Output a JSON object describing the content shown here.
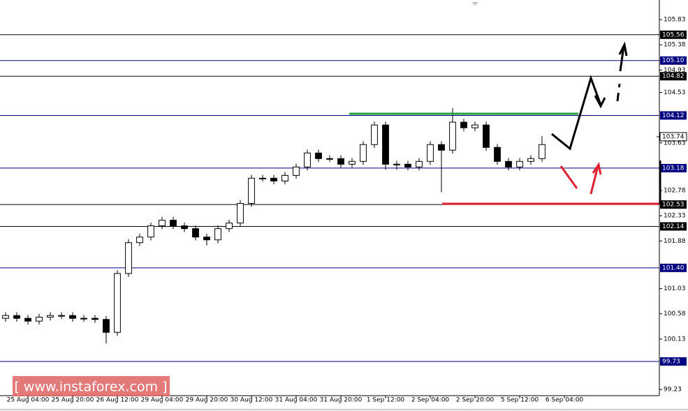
{
  "chart_data": {
    "type": "candlestick",
    "watermark": "[ www.instaforex.com ]",
    "xlim": [
      -0.5,
      58.5
    ],
    "xticks": [
      {
        "value": 2,
        "label": "25 Aug 04:00"
      },
      {
        "value": 6,
        "label": "25 Aug 20:00"
      },
      {
        "value": 10,
        "label": "26 Aug 12:00"
      },
      {
        "value": 14,
        "label": "29 Aug 04:00"
      },
      {
        "value": 18,
        "label": "29 Aug 20:00"
      },
      {
        "value": 22,
        "label": "30 Aug 12:00"
      },
      {
        "value": 26,
        "label": "31 Aug 04:00"
      },
      {
        "value": 30,
        "label": "31 Aug 20:00"
      },
      {
        "value": 34,
        "label": "1 Sep 12:00"
      },
      {
        "value": 38,
        "label": "2 Sep 04:00"
      },
      {
        "value": 42,
        "label": "2 Sep 20:00"
      },
      {
        "value": 46,
        "label": "5 Sep 12:00"
      },
      {
        "value": 50,
        "label": "6 Sep 04:00"
      }
    ],
    "ylim": [
      99.12,
      106.18
    ],
    "yticks": [
      99.23,
      100.13,
      100.58,
      101.03,
      101.88,
      102.33,
      102.78,
      103.63,
      104.53,
      104.93,
      105.38,
      105.83
    ],
    "levels": [
      {
        "value": 105.56,
        "color": "#000000"
      },
      {
        "value": {
          "value": 105.1,
          "label": "105.10"
        },
        "color": "#000080"
      },
      {
        "value": 104.82,
        "color": "#000000"
      },
      {
        "value": 104.12,
        "color": "#000080"
      },
      {
        "value": 103.18,
        "color": "#000080"
      },
      {
        "value": 102.53,
        "color": "#000000"
      },
      {
        "value": 102.14,
        "color": "#000000"
      },
      {
        "value": {
          "value": 101.4,
          "label": "101.40"
        },
        "color": "#000080"
      },
      {
        "value": 99.73,
        "color": "#000080"
      }
    ],
    "current_price": 103.74,
    "open": [
      100.5,
      100.55,
      100.5,
      100.45,
      100.52,
      100.55,
      100.55,
      100.5,
      100.5,
      100.48,
      100.25,
      101.3,
      101.85,
      101.95,
      102.15,
      102.25,
      102.15,
      102.1,
      101.95,
      101.9,
      102.1,
      102.2,
      102.55,
      103.0,
      103.0,
      102.95,
      103.05,
      103.2,
      103.45,
      103.35,
      103.35,
      103.25,
      103.3,
      103.6,
      103.95,
      103.25,
      103.25,
      103.2,
      103.3,
      103.6,
      103.5,
      104.0,
      103.9,
      103.95,
      103.55,
      103.3,
      103.2,
      103.3,
      103.35
    ],
    "high": [
      100.61,
      100.61,
      100.56,
      100.58,
      100.61,
      100.61,
      100.61,
      100.56,
      100.56,
      100.54,
      101.36,
      101.91,
      102.01,
      102.21,
      102.31,
      102.31,
      102.21,
      102.16,
      102.01,
      102.16,
      102.26,
      102.61,
      103.06,
      103.06,
      103.06,
      103.11,
      103.26,
      103.51,
      103.51,
      103.41,
      103.41,
      103.36,
      103.66,
      104.01,
      104.01,
      103.31,
      103.31,
      103.36,
      103.66,
      103.66,
      104.25,
      104.06,
      104.01,
      104.01,
      103.61,
      103.36,
      103.36,
      103.41,
      103.75
    ],
    "low": [
      100.44,
      100.44,
      100.39,
      100.39,
      100.46,
      100.49,
      100.44,
      100.44,
      100.42,
      100.05,
      100.19,
      101.24,
      101.79,
      101.89,
      102.09,
      102.09,
      102.04,
      101.89,
      101.8,
      101.84,
      102.04,
      102.14,
      102.49,
      102.94,
      102.89,
      102.89,
      102.99,
      103.14,
      103.29,
      103.29,
      103.19,
      103.19,
      103.24,
      103.54,
      103.15,
      103.15,
      103.14,
      103.14,
      103.24,
      102.75,
      103.44,
      103.84,
      103.84,
      103.49,
      103.24,
      103.14,
      103.14,
      103.24,
      103.29
    ],
    "close": [
      100.55,
      100.5,
      100.45,
      100.52,
      100.55,
      100.55,
      100.5,
      100.5,
      100.48,
      100.25,
      101.3,
      101.85,
      101.95,
      102.15,
      102.25,
      102.15,
      102.1,
      101.95,
      101.9,
      102.1,
      102.2,
      102.55,
      103.0,
      103.0,
      102.95,
      103.05,
      103.2,
      103.45,
      103.35,
      103.35,
      103.25,
      103.3,
      103.6,
      103.95,
      103.25,
      103.25,
      103.2,
      103.3,
      103.6,
      103.5,
      104.0,
      103.9,
      103.95,
      103.55,
      103.3,
      103.2,
      103.3,
      103.35,
      103.6
    ]
  }
}
